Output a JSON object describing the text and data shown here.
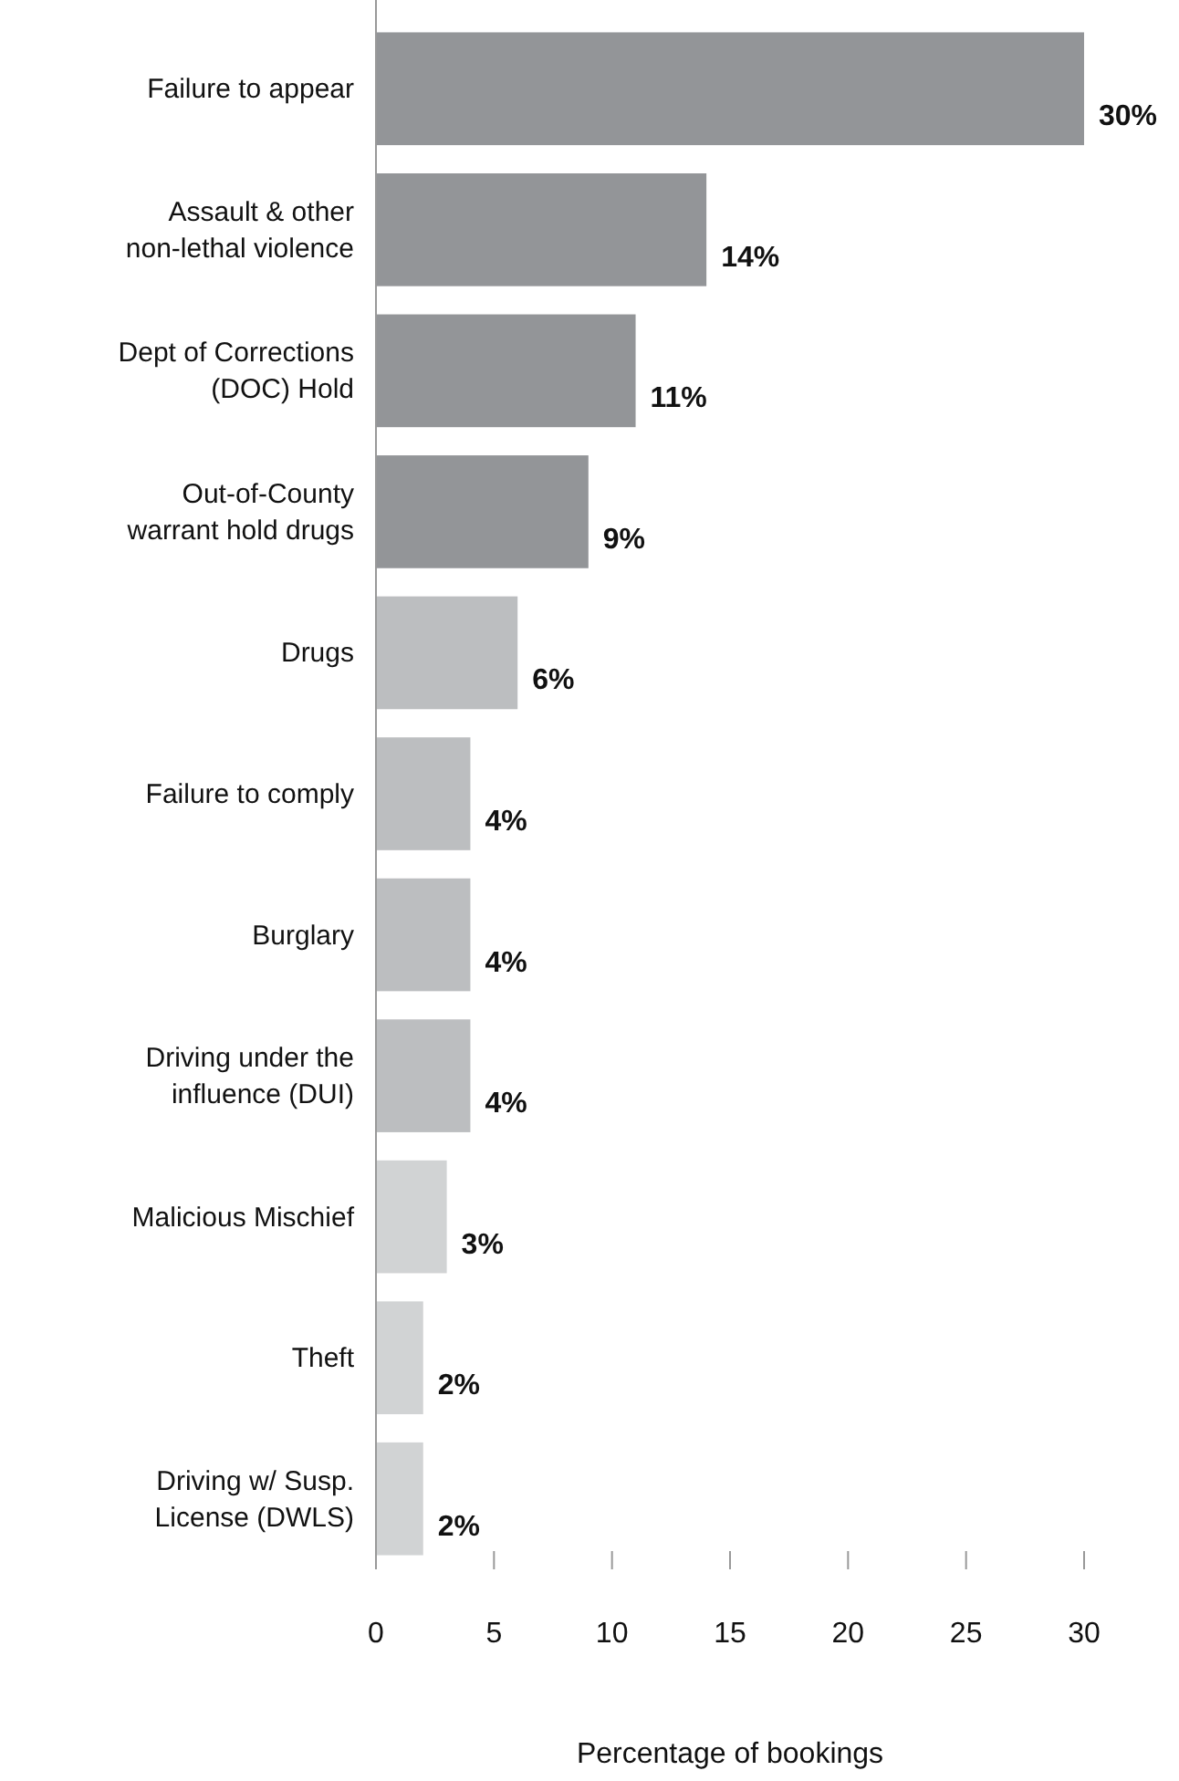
{
  "chart_data": {
    "type": "bar",
    "orientation": "horizontal",
    "xlabel": "Percentage of bookings",
    "categories": [
      "Failure to appear",
      "Assault & other non-lethal violence",
      "Dept of Corrections (DOC) Hold",
      "Out-of-County warrant hold drugs",
      "Drugs",
      "Failure to comply",
      "Burglary",
      "Driving under the influence (DUI)",
      "Malicious Mischief",
      "Theft",
      "Driving w/ Susp. License (DWLS)"
    ],
    "values": [
      30,
      14,
      11,
      9,
      6,
      4,
      4,
      4,
      3,
      2,
      2
    ],
    "value_labels": [
      "30%",
      "14%",
      "11%",
      "9%",
      "6%",
      "4%",
      "4%",
      "4%",
      "3%",
      "2%",
      "2%"
    ],
    "colors": [
      "#939598",
      "#939598",
      "#939598",
      "#939598",
      "#bcbec0",
      "#bcbec0",
      "#bcbec0",
      "#bcbec0",
      "#d1d3d4",
      "#d1d3d4",
      "#d1d3d4"
    ],
    "xlim": [
      0,
      30
    ],
    "xticks": [
      0,
      5,
      10,
      15,
      20,
      25,
      30
    ],
    "grid": false
  }
}
